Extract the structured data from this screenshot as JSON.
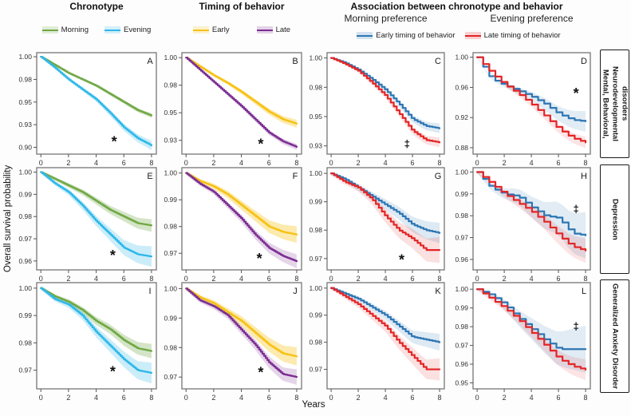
{
  "figure": {
    "column_headers": {
      "chronotype": "Chronotype",
      "timing": "Timing of behavior",
      "association": "Association between chronotype  and behavior"
    },
    "sub_headers": {
      "morning_preference": "Morning preference",
      "evening_preference": "Evening preference"
    },
    "row_labels": [
      "Mental, Behavioral, Neurodevelopmental disorders",
      "Depression",
      "Generalized Anxiety Disorder"
    ],
    "legends": {
      "chronotype": [
        {
          "label": "Morning",
          "color": "#70a845"
        },
        {
          "label": "Evening",
          "color": "#2fb8e9"
        }
      ],
      "timing": [
        {
          "label": "Early",
          "color": "#f6c216"
        },
        {
          "label": "Late",
          "color": "#7b2e92"
        }
      ],
      "association": [
        {
          "label": "Early timing of behavior",
          "color": "#2d76b4"
        },
        {
          "label": "Late timing of behavior",
          "color": "#e32526"
        }
      ]
    },
    "ylabel": "Overall survival probability",
    "xlabel": "Years"
  },
  "chart_data": {
    "type": "line",
    "title": "Kaplan-Meier overall survival probability by chronotype and timing of behavior",
    "xlabel": "Years",
    "ylabel": "Overall survival probability",
    "x_values": [
      0,
      1,
      2,
      3,
      4,
      5,
      6,
      7,
      8
    ],
    "x_ticks": [
      0,
      2,
      4,
      6,
      8
    ],
    "xlim": [
      -0.3,
      8.35
    ],
    "panels": [
      {
        "letter": "A",
        "row": 0,
        "col": 0,
        "step": 0.12,
        "ylim": [
          0.8925,
          1.0045
        ],
        "yticks": [
          {
            "v": 1.0,
            "l": "1.00"
          },
          {
            "v": 0.975,
            "l": "0.98"
          },
          {
            "v": 0.95,
            "l": "0.95"
          },
          {
            "v": 0.925,
            "l": "0.93"
          },
          {
            "v": 0.9,
            "l": "0.90"
          }
        ],
        "marker": {
          "symbol": "*",
          "x": 5.3,
          "y": 0.906
        },
        "series": [
          {
            "name": "Morning",
            "color": "#70a845",
            "band": 0.0018,
            "op": 0.3,
            "values": [
              1.0,
              0.991,
              0.982,
              0.975,
              0.968,
              0.959,
              0.95,
              0.941,
              0.935
            ]
          },
          {
            "name": "Evening",
            "color": "#2fb8e9",
            "band": 0.0045,
            "op": 0.25,
            "values": [
              1.0,
              0.988,
              0.975,
              0.964,
              0.953,
              0.938,
              0.922,
              0.91,
              0.902
            ]
          }
        ]
      },
      {
        "letter": "B",
        "row": 0,
        "col": 1,
        "step": 0.12,
        "ylim": [
          0.9125,
          1.0045
        ],
        "yticks": [
          {
            "v": 1.0,
            "l": "1.00"
          },
          {
            "v": 0.975,
            "l": "0.98"
          },
          {
            "v": 0.95,
            "l": "0.95"
          },
          {
            "v": 0.925,
            "l": "0.93"
          }
        ],
        "marker": {
          "symbol": "*",
          "x": 5.4,
          "y": 0.9215
        },
        "series": [
          {
            "name": "Early",
            "color": "#f6c216",
            "band": 0.003,
            "op": 0.35,
            "values": [
              1.0,
              0.992,
              0.984,
              0.977,
              0.969,
              0.96,
              0.951,
              0.944,
              0.94
            ]
          },
          {
            "name": "Late",
            "color": "#7b2e92",
            "band": 0.0022,
            "op": 0.2,
            "values": [
              1.0,
              0.989,
              0.978,
              0.967,
              0.956,
              0.944,
              0.932,
              0.924,
              0.919
            ]
          }
        ]
      },
      {
        "letter": "C",
        "row": 0,
        "col": 2,
        "step": 0.22,
        "ylim": [
          0.918,
          1.0045
        ],
        "yticks": [
          {
            "v": 1.0,
            "l": "1.00"
          },
          {
            "v": 0.975,
            "l": "0.98"
          },
          {
            "v": 0.95,
            "l": "0.95"
          },
          {
            "v": 0.925,
            "l": "0.93"
          }
        ],
        "marker": {
          "symbol": "‡",
          "x": 5.6,
          "y": 0.9265
        },
        "series": [
          {
            "name": "Early timing of behavior",
            "color": "#2d76b4",
            "band": 0.0035,
            "op": 0.16,
            "values": [
              1.0,
              0.996,
              0.99,
              0.982,
              0.973,
              0.961,
              0.948,
              0.942,
              0.94
            ]
          },
          {
            "name": "Late timing of behavior",
            "color": "#e32526",
            "band": 0.0035,
            "op": 0.14,
            "values": [
              1.0,
              0.995,
              0.989,
              0.979,
              0.968,
              0.953,
              0.938,
              0.93,
              0.928
            ]
          }
        ]
      },
      {
        "letter": "D",
        "row": 0,
        "col": 3,
        "step": 0.45,
        "ylim": [
          0.8715,
          1.006
        ],
        "yticks": [
          {
            "v": 1.0,
            "l": "1.00"
          },
          {
            "v": 0.96,
            "l": "0.96"
          },
          {
            "v": 0.92,
            "l": "0.92"
          },
          {
            "v": 0.88,
            "l": "0.88"
          }
        ],
        "marker": {
          "symbol": "*",
          "x": 7.3,
          "y": 0.952
        },
        "series": [
          {
            "name": "Early timing of behavior",
            "color": "#2d76b4",
            "band": 0.013,
            "op": 0.14,
            "values": [
              1.0,
              0.972,
              0.963,
              0.956,
              0.948,
              0.938,
              0.925,
              0.917,
              0.915
            ]
          },
          {
            "name": "Late timing of behavior",
            "color": "#e32526",
            "band": 0.007,
            "op": 0.12,
            "values": [
              1.0,
              0.98,
              0.964,
              0.952,
              0.938,
              0.922,
              0.905,
              0.893,
              0.887
            ]
          }
        ]
      },
      {
        "letter": "E",
        "row": 1,
        "col": 0,
        "step": 0.12,
        "ylim": [
          0.956,
          1.002
        ],
        "yticks": [
          {
            "v": 1.0,
            "l": "1.00"
          },
          {
            "v": 0.99,
            "l": "0.99"
          },
          {
            "v": 0.98,
            "l": "0.98"
          },
          {
            "v": 0.97,
            "l": "0.97"
          },
          {
            "v": 0.96,
            "l": "0.96"
          }
        ],
        "marker": {
          "symbol": "*",
          "x": 5.2,
          "y": 0.9625
        },
        "series": [
          {
            "name": "Morning",
            "color": "#70a845",
            "band": 0.0022,
            "op": 0.3,
            "values": [
              1.0,
              0.997,
              0.994,
              0.991,
              0.987,
              0.983,
              0.98,
              0.977,
              0.976
            ]
          },
          {
            "name": "Evening",
            "color": "#2fb8e9",
            "band": 0.004,
            "op": 0.25,
            "values": [
              1.0,
              0.995,
              0.991,
              0.985,
              0.978,
              0.972,
              0.966,
              0.963,
              0.962
            ]
          }
        ]
      },
      {
        "letter": "F",
        "row": 1,
        "col": 1,
        "step": 0.12,
        "ylim": [
          0.9638,
          1.002
        ],
        "yticks": [
          {
            "v": 1.0,
            "l": "1.00"
          },
          {
            "v": 0.99,
            "l": "0.99"
          },
          {
            "v": 0.98,
            "l": "0.98"
          },
          {
            "v": 0.97,
            "l": "0.97"
          }
        ],
        "marker": {
          "symbol": "*",
          "x": 5.3,
          "y": 0.968
        },
        "series": [
          {
            "name": "Early",
            "color": "#f6c216",
            "band": 0.0025,
            "op": 0.35,
            "values": [
              1.0,
              0.997,
              0.995,
              0.992,
              0.988,
              0.984,
              0.98,
              0.978,
              0.977
            ]
          },
          {
            "name": "Late",
            "color": "#7b2e92",
            "band": 0.002,
            "op": 0.2,
            "values": [
              1.0,
              0.996,
              0.993,
              0.988,
              0.983,
              0.977,
              0.972,
              0.969,
              0.967
            ]
          }
        ]
      },
      {
        "letter": "G",
        "row": 1,
        "col": 2,
        "step": 0.22,
        "ylim": [
          0.966,
          1.002
        ],
        "yticks": [
          {
            "v": 1.0,
            "l": "1.00"
          },
          {
            "v": 0.99,
            "l": "0.99"
          },
          {
            "v": 0.98,
            "l": "0.98"
          },
          {
            "v": 0.97,
            "l": "0.97"
          }
        ],
        "marker": {
          "symbol": "*",
          "x": 5.2,
          "y": 0.9695
        },
        "series": [
          {
            "name": "Early timing of behavior",
            "color": "#2d76b4",
            "band": 0.003,
            "op": 0.16,
            "values": [
              1.0,
              0.998,
              0.995,
              0.992,
              0.989,
              0.986,
              0.982,
              0.98,
              0.979
            ]
          },
          {
            "name": "Late timing of behavior",
            "color": "#e32526",
            "band": 0.004,
            "op": 0.14,
            "values": [
              1.0,
              0.997,
              0.995,
              0.991,
              0.985,
              0.98,
              0.977,
              0.973,
              0.973
            ]
          }
        ]
      },
      {
        "letter": "H",
        "row": 1,
        "col": 3,
        "step": 0.45,
        "ylim": [
          0.9552,
          1.002
        ],
        "yticks": [
          {
            "v": 1.0,
            "l": "1.00"
          },
          {
            "v": 0.99,
            "l": "0.99"
          },
          {
            "v": 0.98,
            "l": "0.98"
          },
          {
            "v": 0.97,
            "l": "0.97"
          },
          {
            "v": 0.96,
            "l": "0.96"
          }
        ],
        "marker": {
          "symbol": "‡",
          "x": 7.3,
          "y": 0.983
        },
        "series": [
          {
            "name": "Early timing of behavior",
            "color": "#2d76b4",
            "band": 0.01,
            "op": 0.14,
            "values": [
              1.0,
              0.993,
              0.99,
              0.989,
              0.984,
              0.98,
              0.979,
              0.972,
              0.971
            ]
          },
          {
            "name": "Late timing of behavior",
            "color": "#e32526",
            "band": 0.005,
            "op": 0.12,
            "values": [
              1.0,
              0.995,
              0.99,
              0.986,
              0.982,
              0.977,
              0.971,
              0.966,
              0.964
            ]
          }
        ]
      },
      {
        "letter": "I",
        "row": 2,
        "col": 0,
        "step": 0.12,
        "ylim": [
          0.9632,
          1.002
        ],
        "yticks": [
          {
            "v": 1.0,
            "l": "1.00"
          },
          {
            "v": 0.99,
            "l": "0.99"
          },
          {
            "v": 0.98,
            "l": "0.98"
          },
          {
            "v": 0.97,
            "l": "0.97"
          }
        ],
        "marker": {
          "symbol": "*",
          "x": 5.2,
          "y": 0.9695
        },
        "series": [
          {
            "name": "Morning",
            "color": "#70a845",
            "band": 0.002,
            "op": 0.3,
            "values": [
              1.0,
              0.997,
              0.995,
              0.992,
              0.988,
              0.985,
              0.981,
              0.978,
              0.977
            ]
          },
          {
            "name": "Evening",
            "color": "#2fb8e9",
            "band": 0.0032,
            "op": 0.25,
            "values": [
              1.0,
              0.996,
              0.994,
              0.99,
              0.984,
              0.979,
              0.974,
              0.97,
              0.969
            ]
          }
        ]
      },
      {
        "letter": "J",
        "row": 2,
        "col": 1,
        "step": 0.12,
        "ylim": [
          0.966,
          1.002
        ],
        "yticks": [
          {
            "v": 1.0,
            "l": "1.00"
          },
          {
            "v": 0.99,
            "l": "0.99"
          },
          {
            "v": 0.98,
            "l": "0.98"
          },
          {
            "v": 0.97,
            "l": "0.97"
          }
        ],
        "marker": {
          "symbol": "*",
          "x": 5.4,
          "y": 0.9715
        },
        "series": [
          {
            "name": "Early",
            "color": "#f6c216",
            "band": 0.0025,
            "op": 0.35,
            "values": [
              1.0,
              0.997,
              0.995,
              0.992,
              0.989,
              0.985,
              0.981,
              0.978,
              0.977
            ]
          },
          {
            "name": "Late",
            "color": "#7b2e92",
            "band": 0.002,
            "op": 0.2,
            "values": [
              1.0,
              0.996,
              0.994,
              0.991,
              0.986,
              0.981,
              0.975,
              0.971,
              0.97
            ]
          }
        ]
      },
      {
        "letter": "K",
        "row": 2,
        "col": 2,
        "step": 0.22,
        "ylim": [
          0.9628,
          1.002
        ],
        "yticks": [
          {
            "v": 1.0,
            "l": "1.00"
          },
          {
            "v": 0.99,
            "l": "0.99"
          },
          {
            "v": 0.98,
            "l": "0.98"
          },
          {
            "v": 0.97,
            "l": "0.97"
          }
        ],
        "marker": null,
        "series": [
          {
            "name": "Early timing of behavior",
            "color": "#2d76b4",
            "band": 0.0025,
            "op": 0.16,
            "values": [
              1.0,
              0.998,
              0.996,
              0.993,
              0.99,
              0.986,
              0.982,
              0.981,
              0.98
            ]
          },
          {
            "name": "Late timing of behavior",
            "color": "#e32526",
            "band": 0.0035,
            "op": 0.14,
            "values": [
              1.0,
              0.997,
              0.994,
              0.99,
              0.986,
              0.98,
              0.975,
              0.97,
              0.97
            ]
          }
        ]
      },
      {
        "letter": "L",
        "row": 2,
        "col": 3,
        "step": 0.45,
        "ylim": [
          0.9468,
          1.0035
        ],
        "yticks": [
          {
            "v": 1.0,
            "l": "1.00"
          },
          {
            "v": 0.99,
            "l": "0.99"
          },
          {
            "v": 0.98,
            "l": "0.98"
          },
          {
            "v": 0.97,
            "l": "0.97"
          },
          {
            "v": 0.96,
            "l": "0.96"
          },
          {
            "v": 0.95,
            "l": "0.95"
          }
        ],
        "marker": {
          "symbol": "‡",
          "x": 7.3,
          "y": 0.98
        },
        "series": [
          {
            "name": "Early timing of behavior",
            "color": "#2d76b4",
            "band": 0.012,
            "op": 0.14,
            "values": [
              1.0,
              0.997,
              0.992,
              0.985,
              0.979,
              0.973,
              0.968,
              0.968,
              0.968
            ]
          },
          {
            "name": "Late timing of behavior",
            "color": "#e32526",
            "band": 0.005,
            "op": 0.12,
            "values": [
              1.0,
              0.995,
              0.99,
              0.984,
              0.977,
              0.97,
              0.963,
              0.959,
              0.957
            ]
          }
        ]
      }
    ]
  }
}
